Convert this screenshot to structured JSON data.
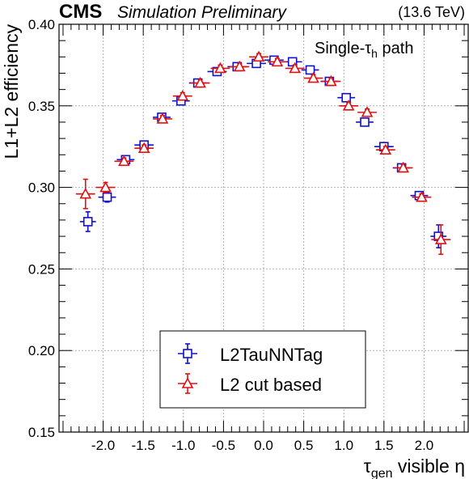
{
  "header": {
    "experiment": "CMS",
    "status": "Simulation Preliminary",
    "energy": "(13.6 TeV)"
  },
  "annotation": {
    "path_prefix": "Single-τ",
    "path_sub": "h",
    "path_suffix": " path"
  },
  "colors": {
    "series_blue": "#1010d0",
    "series_red": "#e01010",
    "grid": "#b0b0b0"
  },
  "chart_data": {
    "type": "scatter",
    "title": "",
    "xlabel_main": "τ",
    "xlabel_sub": "gen",
    "xlabel_suffix": " visible η",
    "ylabel": "L1+L2 efficiency",
    "xlim": [
      -2.55,
      2.55
    ],
    "ylim": [
      0.15,
      0.4
    ],
    "xticks": [
      -2.0,
      -1.5,
      -1.0,
      -0.5,
      0.0,
      0.5,
      1.0,
      1.5,
      2.0
    ],
    "xtick_labels": [
      "-2.0",
      "-1.5",
      "-1.0",
      "-0.5",
      "0.0",
      "0.5",
      "1.0",
      "1.5",
      "2.0"
    ],
    "yticks": [
      0.15,
      0.2,
      0.25,
      0.3,
      0.35,
      0.4
    ],
    "ytick_labels": [
      "0.15",
      "0.20",
      "0.25",
      "0.30",
      "0.35",
      "0.40"
    ],
    "grid": true,
    "legend_position": "bottom-center",
    "series": [
      {
        "name": "L2TauNNTag",
        "marker": "open-square",
        "color": "#1010d0",
        "points": [
          {
            "x": -2.19,
            "xerr": 0.1,
            "y": 0.279,
            "yerr": 0.006
          },
          {
            "x": -1.95,
            "xerr": 0.11,
            "y": 0.294,
            "yerr": 0.003
          },
          {
            "x": -1.72,
            "xerr": 0.11,
            "y": 0.317,
            "yerr": 0.002
          },
          {
            "x": -1.49,
            "xerr": 0.12,
            "y": 0.326,
            "yerr": 0.002
          },
          {
            "x": -1.27,
            "xerr": 0.11,
            "y": 0.343,
            "yerr": 0.002
          },
          {
            "x": -1.03,
            "xerr": 0.11,
            "y": 0.353,
            "yerr": 0.002
          },
          {
            "x": -0.82,
            "xerr": 0.11,
            "y": 0.364,
            "yerr": 0.002
          },
          {
            "x": -0.58,
            "xerr": 0.12,
            "y": 0.371,
            "yerr": 0.002
          },
          {
            "x": -0.33,
            "xerr": 0.12,
            "y": 0.374,
            "yerr": 0.002
          },
          {
            "x": -0.09,
            "xerr": 0.12,
            "y": 0.376,
            "yerr": 0.002
          },
          {
            "x": 0.13,
            "xerr": 0.12,
            "y": 0.378,
            "yerr": 0.002
          },
          {
            "x": 0.36,
            "xerr": 0.12,
            "y": 0.377,
            "yerr": 0.002
          },
          {
            "x": 0.58,
            "xerr": 0.11,
            "y": 0.372,
            "yerr": 0.002
          },
          {
            "x": 0.82,
            "xerr": 0.11,
            "y": 0.365,
            "yerr": 0.002
          },
          {
            "x": 1.03,
            "xerr": 0.11,
            "y": 0.355,
            "yerr": 0.002
          },
          {
            "x": 1.26,
            "xerr": 0.11,
            "y": 0.34,
            "yerr": 0.002
          },
          {
            "x": 1.5,
            "xerr": 0.12,
            "y": 0.325,
            "yerr": 0.002
          },
          {
            "x": 1.72,
            "xerr": 0.11,
            "y": 0.312,
            "yerr": 0.002
          },
          {
            "x": 1.94,
            "xerr": 0.11,
            "y": 0.295,
            "yerr": 0.002
          },
          {
            "x": 2.18,
            "xerr": 0.1,
            "y": 0.27,
            "yerr": 0.007
          }
        ]
      },
      {
        "name": "L2 cut based",
        "marker": "open-triangle",
        "color": "#e01010",
        "points": [
          {
            "x": -2.22,
            "xerr": 0.12,
            "y": 0.296,
            "yerr": 0.009
          },
          {
            "x": -1.97,
            "xerr": 0.12,
            "y": 0.3,
            "yerr": 0.003
          },
          {
            "x": -1.74,
            "xerr": 0.12,
            "y": 0.316,
            "yerr": 0.002
          },
          {
            "x": -1.49,
            "xerr": 0.12,
            "y": 0.324,
            "yerr": 0.002
          },
          {
            "x": -1.26,
            "xerr": 0.12,
            "y": 0.342,
            "yerr": 0.002
          },
          {
            "x": -1.01,
            "xerr": 0.12,
            "y": 0.356,
            "yerr": 0.002
          },
          {
            "x": -0.79,
            "xerr": 0.12,
            "y": 0.364,
            "yerr": 0.002
          },
          {
            "x": -0.54,
            "xerr": 0.12,
            "y": 0.373,
            "yerr": 0.002
          },
          {
            "x": -0.3,
            "xerr": 0.12,
            "y": 0.374,
            "yerr": 0.002
          },
          {
            "x": -0.06,
            "xerr": 0.12,
            "y": 0.38,
            "yerr": 0.002
          },
          {
            "x": 0.17,
            "xerr": 0.12,
            "y": 0.377,
            "yerr": 0.002
          },
          {
            "x": 0.39,
            "xerr": 0.12,
            "y": 0.373,
            "yerr": 0.002
          },
          {
            "x": 0.62,
            "xerr": 0.12,
            "y": 0.367,
            "yerr": 0.002
          },
          {
            "x": 0.84,
            "xerr": 0.12,
            "y": 0.365,
            "yerr": 0.002
          },
          {
            "x": 1.06,
            "xerr": 0.12,
            "y": 0.35,
            "yerr": 0.002
          },
          {
            "x": 1.29,
            "xerr": 0.12,
            "y": 0.346,
            "yerr": 0.002
          },
          {
            "x": 1.52,
            "xerr": 0.12,
            "y": 0.323,
            "yerr": 0.002
          },
          {
            "x": 1.74,
            "xerr": 0.12,
            "y": 0.312,
            "yerr": 0.002
          },
          {
            "x": 1.97,
            "xerr": 0.12,
            "y": 0.294,
            "yerr": 0.002
          },
          {
            "x": 2.21,
            "xerr": 0.12,
            "y": 0.268,
            "yerr": 0.009
          }
        ]
      }
    ]
  }
}
